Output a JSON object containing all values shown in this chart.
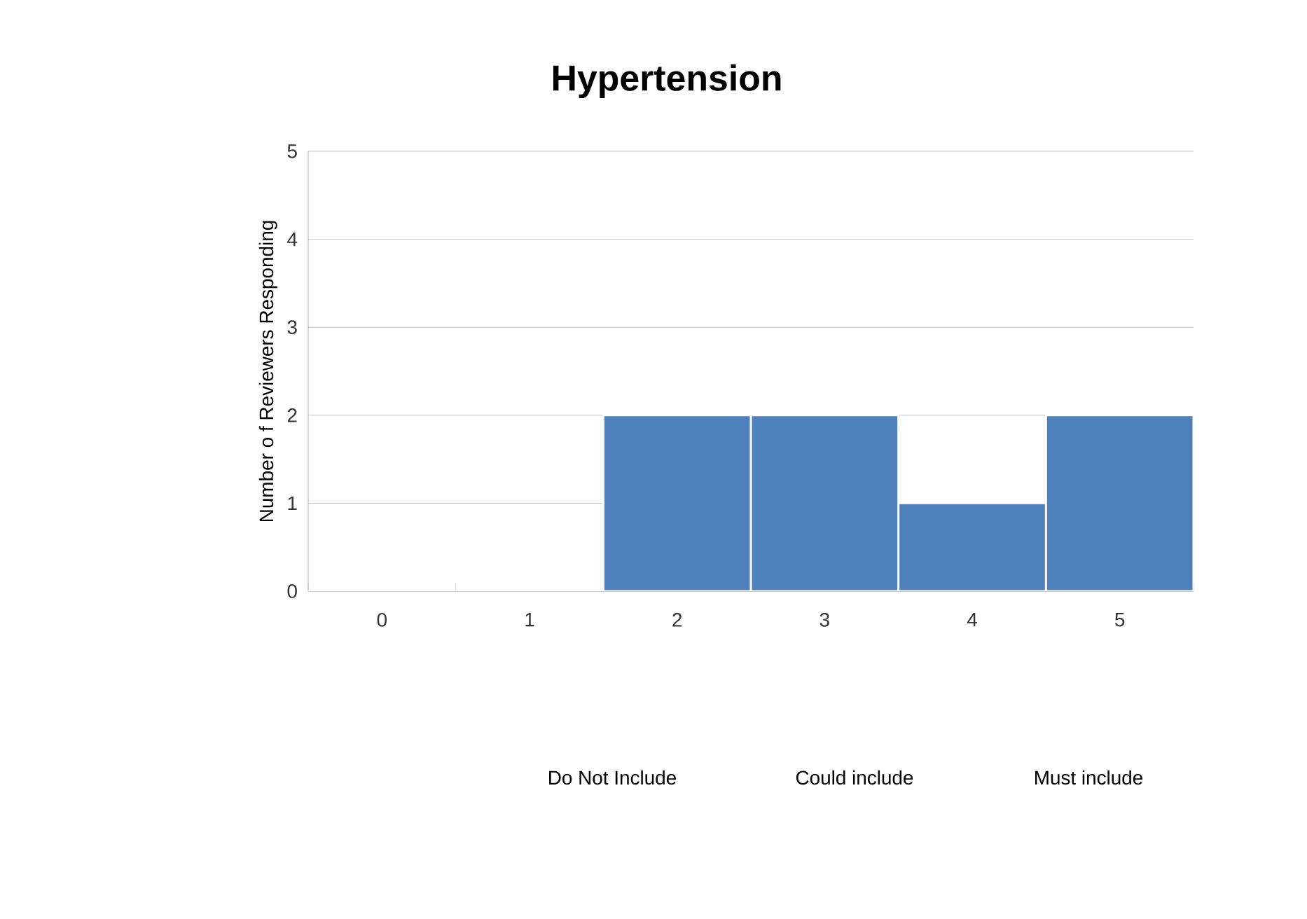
{
  "chart_data": {
    "type": "bar",
    "title": "Hypertension",
    "ylabel": "Number o f Reviewers Responding",
    "categories": [
      "0",
      "1",
      "2",
      "3",
      "4",
      "5"
    ],
    "values": [
      0,
      0,
      2,
      2,
      1,
      2
    ],
    "color": "#4f81bd",
    "ylim": [
      0,
      5
    ],
    "yticks": [
      0,
      1,
      2,
      3,
      4,
      5
    ],
    "grid": "y",
    "annotations": [
      "Do Not Include",
      "Could include",
      "Must include"
    ]
  }
}
